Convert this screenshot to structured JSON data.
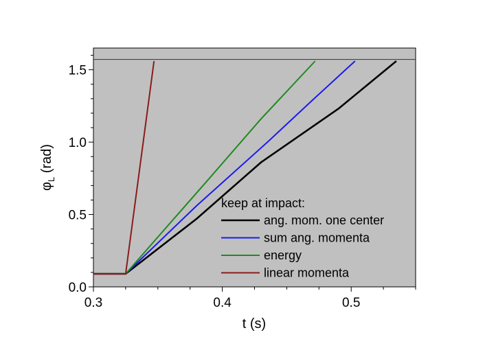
{
  "chart_data": {
    "type": "line",
    "title": "",
    "xlabel": "t (s)",
    "ylabel_main": "φ",
    "ylabel_sub": "L",
    "ylabel_unit": " (rad)",
    "xlim": [
      0.3,
      0.55
    ],
    "ylim": [
      0.0,
      1.65
    ],
    "x_ticks": [
      0.3,
      0.4,
      0.5
    ],
    "x_tick_labels": [
      "0.3",
      "0.4",
      "0.5"
    ],
    "y_ticks": [
      0.0,
      0.5,
      1.0,
      1.5
    ],
    "y_tick_labels": [
      "0.0",
      "0.5",
      "1.0",
      "1.5"
    ],
    "grid": false,
    "background": "#c0c0c0",
    "reference_line_y": 1.571,
    "legend": {
      "title": "keep at impact:",
      "placement": "bottom-right"
    },
    "series": [
      {
        "name": "ang. mom.  one center",
        "color": "#000000",
        "x": [
          0.3,
          0.325,
          0.38,
          0.43,
          0.49,
          0.535
        ],
        "y": [
          0.09,
          0.09,
          0.47,
          0.86,
          1.23,
          1.56
        ]
      },
      {
        "name": "sum ang. momenta",
        "color": "#1a1aee",
        "x": [
          0.3,
          0.325,
          0.38,
          0.435,
          0.47,
          0.503
        ],
        "y": [
          0.09,
          0.09,
          0.56,
          1.0,
          1.29,
          1.56
        ]
      },
      {
        "name": "energy",
        "color": "#1f8a1f",
        "x": [
          0.3,
          0.325,
          0.39,
          0.43,
          0.472
        ],
        "y": [
          0.09,
          0.09,
          0.75,
          1.16,
          1.56
        ]
      },
      {
        "name": "linear momenta",
        "color": "#8b1a1a",
        "x": [
          0.3,
          0.325,
          0.347
        ],
        "y": [
          0.09,
          0.09,
          1.56
        ]
      }
    ]
  }
}
